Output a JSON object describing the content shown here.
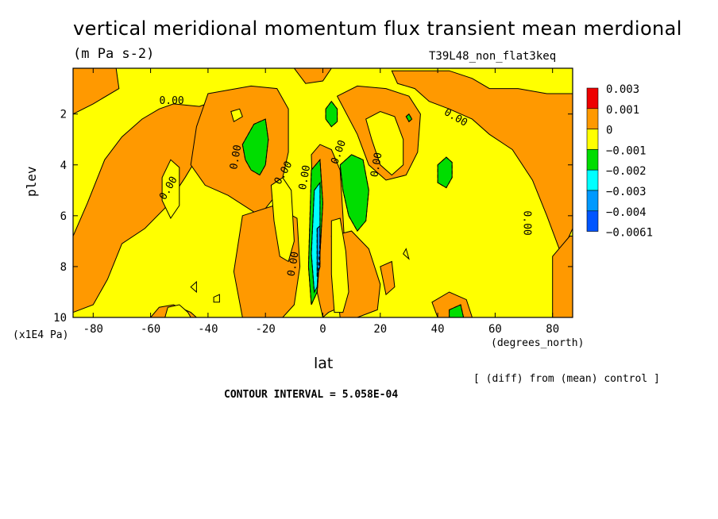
{
  "chart_data": {
    "type": "contour",
    "title": "vertical meridional momentum flux transient mean merdional",
    "units": "(m Pa s-2)",
    "run_label": "T39L48_non_flat3keq",
    "xlabel": "lat",
    "x_units": "(degrees_north)",
    "ylabel": "plev",
    "y_units": "(x1E4 Pa)",
    "xlim": [
      -87,
      87
    ],
    "ylim": [
      10,
      0.2
    ],
    "x_ticks": [
      -80,
      -60,
      -40,
      -20,
      0,
      20,
      40,
      60,
      80
    ],
    "y_ticks": [
      2,
      4,
      6,
      8,
      10
    ],
    "contour_interval_text": "CONTOUR INTERVAL = 5.058E-04",
    "diff_note": "[ (diff) from (mean) control ]",
    "contour_labels": [
      "0.00",
      "0.00",
      "0.00",
      "0.00",
      "0.00",
      "0.00",
      "0.00",
      "0.00",
      "0.00",
      "0.00"
    ],
    "legend": [
      {
        "label": "0.003",
        "color": "#ee0000"
      },
      {
        "label": "0.001",
        "color": "#ff9900"
      },
      {
        "label": "0",
        "color": "#ffff00"
      },
      {
        "label": "−0.001",
        "color": "#00dd00"
      },
      {
        "label": "−0.002",
        "color": "#00ffff"
      },
      {
        "label": "−0.003",
        "color": "#0099ff"
      },
      {
        "label": "−0.004",
        "color": "#0055ff"
      },
      {
        "label": "−0.0061",
        "color": null
      }
    ],
    "regions": [
      {
        "level": 1,
        "points": [
          [
            -87,
            6.8
          ],
          [
            -82,
            5.5
          ],
          [
            -76,
            3.8
          ],
          [
            -70,
            2.9
          ],
          [
            -63,
            2.2
          ],
          [
            -57,
            1.8
          ],
          [
            -52,
            1.6
          ],
          [
            -43,
            1.7
          ],
          [
            -38,
            1.5
          ],
          [
            -36,
            2.0
          ],
          [
            -40,
            3.0
          ],
          [
            -48,
            4.5
          ],
          [
            -55,
            5.7
          ],
          [
            -62,
            6.5
          ],
          [
            -70,
            7.1
          ],
          [
            -75,
            8.5
          ],
          [
            -80,
            9.5
          ],
          [
            -87,
            9.8
          ]
        ]
      },
      {
        "level": 1,
        "points": [
          [
            -87,
            0.2
          ],
          [
            -72,
            0.2
          ],
          [
            -71,
            1.0
          ],
          [
            -80,
            1.6
          ],
          [
            -87,
            2.0
          ]
        ]
      },
      {
        "level": 1,
        "points": [
          [
            -40,
            1.2
          ],
          [
            -25,
            0.9
          ],
          [
            -16,
            1.0
          ],
          [
            -12,
            1.8
          ],
          [
            -12,
            3.5
          ],
          [
            -15,
            5.0
          ],
          [
            -22,
            6.0
          ],
          [
            -33,
            5.2
          ],
          [
            -41,
            4.8
          ],
          [
            -46,
            4.0
          ],
          [
            -44,
            2.5
          ]
        ]
      },
      {
        "level": 1,
        "points": [
          [
            -28,
            6.0
          ],
          [
            -17,
            5.6
          ],
          [
            -9,
            6.1
          ],
          [
            -8,
            8.0
          ],
          [
            -10,
            9.5
          ],
          [
            -14,
            10
          ],
          [
            -28,
            10
          ],
          [
            -31,
            8.2
          ]
        ]
      },
      {
        "level": 1,
        "points": [
          [
            -60,
            10
          ],
          [
            -57,
            9.6
          ],
          [
            -52,
            9.5
          ],
          [
            -46,
            9.8
          ],
          [
            -44,
            10
          ]
        ]
      },
      {
        "level": 1,
        "points": [
          [
            -4,
            3.6
          ],
          [
            -1,
            3.2
          ],
          [
            3,
            3.4
          ],
          [
            6,
            4.2
          ],
          [
            7,
            6.0
          ],
          [
            8,
            8.0
          ],
          [
            9,
            9.4
          ],
          [
            6,
            9.6
          ],
          [
            2,
            9.8
          ],
          [
            0,
            10
          ],
          [
            -2,
            9.0
          ],
          [
            -3,
            7.5
          ]
        ]
      },
      {
        "level": 1,
        "points": [
          [
            5,
            1.3
          ],
          [
            12,
            0.9
          ],
          [
            22,
            1.0
          ],
          [
            30,
            1.3
          ],
          [
            34,
            2.0
          ],
          [
            33,
            3.5
          ],
          [
            29,
            4.4
          ],
          [
            22,
            4.6
          ],
          [
            16,
            4.0
          ],
          [
            12,
            2.8
          ]
        ]
      },
      {
        "level": 1,
        "points": [
          [
            24,
            0.3
          ],
          [
            44,
            0.3
          ],
          [
            52,
            0.6
          ],
          [
            58,
            1.0
          ],
          [
            68,
            1.0
          ],
          [
            78,
            1.2
          ],
          [
            85,
            1.2
          ],
          [
            87,
            1.2
          ],
          [
            87,
            6.5
          ],
          [
            83,
            7.5
          ],
          [
            78,
            6.0
          ],
          [
            73,
            4.6
          ],
          [
            66,
            3.4
          ],
          [
            58,
            2.8
          ],
          [
            52,
            2.2
          ],
          [
            44,
            1.8
          ],
          [
            37,
            1.5
          ],
          [
            32,
            1.0
          ],
          [
            26,
            0.8
          ]
        ]
      },
      {
        "level": 1,
        "points": [
          [
            -10,
            0.2
          ],
          [
            3,
            0.2
          ],
          [
            0,
            0.7
          ],
          [
            -6,
            0.8
          ]
        ]
      },
      {
        "level": 1,
        "points": [
          [
            3,
            6.8
          ],
          [
            10,
            6.6
          ],
          [
            16,
            7.3
          ],
          [
            20,
            8.7
          ],
          [
            19,
            9.7
          ],
          [
            12,
            10
          ],
          [
            6,
            10
          ]
        ]
      },
      {
        "level": 1,
        "points": [
          [
            20,
            8.0
          ],
          [
            24,
            7.8
          ],
          [
            25,
            8.8
          ],
          [
            22,
            9.1
          ]
        ]
      },
      {
        "level": 1,
        "points": [
          [
            38,
            9.4
          ],
          [
            44,
            9.0
          ],
          [
            50,
            9.3
          ],
          [
            52,
            10
          ],
          [
            40,
            10
          ]
        ]
      },
      {
        "level": 1,
        "points": [
          [
            80,
            7.6
          ],
          [
            86,
            6.8
          ],
          [
            87,
            6.8
          ],
          [
            87,
            10
          ],
          [
            80,
            10
          ]
        ]
      },
      {
        "level": 2,
        "points": [
          [
            -56,
            4.5
          ],
          [
            -53,
            3.8
          ],
          [
            -50,
            4.1
          ],
          [
            -50,
            5.6
          ],
          [
            -53,
            6.1
          ],
          [
            -56,
            5.4
          ]
        ]
      },
      {
        "level": 2,
        "points": [
          [
            -18,
            4.8
          ],
          [
            -14,
            4.5
          ],
          [
            -11,
            5.0
          ],
          [
            -10,
            7.0
          ],
          [
            -12,
            7.8
          ],
          [
            -15,
            7.6
          ],
          [
            -17,
            6.2
          ]
        ]
      },
      {
        "level": 2,
        "points": [
          [
            3,
            6.2
          ],
          [
            6,
            6.1
          ],
          [
            8,
            7.4
          ],
          [
            9,
            9.0
          ],
          [
            7,
            9.8
          ],
          [
            4,
            9.8
          ],
          [
            3,
            8.3
          ]
        ]
      },
      {
        "level": 2,
        "points": [
          [
            15,
            2.2
          ],
          [
            20,
            1.9
          ],
          [
            25,
            2.1
          ],
          [
            28,
            3.0
          ],
          [
            28,
            4.0
          ],
          [
            24,
            4.4
          ],
          [
            20,
            4.0
          ],
          [
            17,
            3.0
          ]
        ]
      },
      {
        "level": 2,
        "points": [
          [
            -54,
            9.6
          ],
          [
            -50,
            9.5
          ],
          [
            -47,
            9.8
          ],
          [
            -46,
            10
          ],
          [
            -55,
            10
          ]
        ]
      },
      {
        "level": 2,
        "points": [
          [
            -32,
            1.9
          ],
          [
            -29,
            1.8
          ],
          [
            -28,
            2.1
          ],
          [
            -31,
            2.3
          ]
        ]
      },
      {
        "level": 2,
        "points": [
          [
            -38,
            9.2
          ],
          [
            -36,
            9.1
          ],
          [
            -36,
            9.4
          ],
          [
            -38,
            9.4
          ]
        ]
      },
      {
        "level": 2,
        "points": [
          [
            -46,
            8.8
          ],
          [
            -44,
            8.6
          ],
          [
            -44,
            9.0
          ]
        ]
      },
      {
        "level": 2,
        "points": [
          [
            28,
            7.5
          ],
          [
            29,
            7.3
          ],
          [
            30,
            7.7
          ]
        ]
      },
      {
        "level": 3,
        "points": [
          [
            -28,
            3.2
          ],
          [
            -24,
            2.4
          ],
          [
            -20,
            2.2
          ],
          [
            -19,
            3.0
          ],
          [
            -20,
            4.0
          ],
          [
            -22,
            4.4
          ],
          [
            -25,
            4.2
          ],
          [
            -27,
            3.8
          ]
        ]
      },
      {
        "level": 3,
        "points": [
          [
            6,
            4.0
          ],
          [
            10,
            3.6
          ],
          [
            14,
            3.8
          ],
          [
            16,
            5.0
          ],
          [
            15,
            6.2
          ],
          [
            12,
            6.6
          ],
          [
            9,
            6.0
          ],
          [
            7,
            5.0
          ]
        ]
      },
      {
        "level": 3,
        "points": [
          [
            40,
            4.0
          ],
          [
            43,
            3.7
          ],
          [
            45,
            3.9
          ],
          [
            45,
            4.5
          ],
          [
            43,
            4.9
          ],
          [
            40,
            4.7
          ]
        ]
      },
      {
        "level": 3,
        "points": [
          [
            1,
            1.8
          ],
          [
            3,
            1.5
          ],
          [
            5,
            1.8
          ],
          [
            5,
            2.3
          ],
          [
            3,
            2.5
          ],
          [
            1,
            2.2
          ]
        ]
      },
      {
        "level": 3,
        "points": [
          [
            -4,
            4.2
          ],
          [
            -1,
            3.8
          ],
          [
            0,
            5.5
          ],
          [
            -1,
            7.5
          ],
          [
            -2,
            9.0
          ],
          [
            -4,
            9.5
          ],
          [
            -5,
            8.0
          ]
        ]
      },
      {
        "level": 3,
        "points": [
          [
            44,
            9.7
          ],
          [
            48,
            9.5
          ],
          [
            49,
            10
          ],
          [
            44,
            10
          ]
        ]
      },
      {
        "level": 3,
        "points": [
          [
            29,
            2.1
          ],
          [
            30,
            2.0
          ],
          [
            31,
            2.2
          ],
          [
            30,
            2.3
          ]
        ]
      },
      {
        "level": 4,
        "points": [
          [
            -3,
            5.0
          ],
          [
            -1,
            4.7
          ],
          [
            -1,
            7.0
          ],
          [
            -2,
            8.8
          ],
          [
            -3,
            9.0
          ],
          [
            -4,
            7.5
          ]
        ]
      },
      {
        "level": 5,
        "points": [
          [
            -2,
            6.5
          ],
          [
            -1,
            6.4
          ],
          [
            -1,
            8.0
          ],
          [
            -2,
            8.4
          ]
        ]
      }
    ]
  }
}
